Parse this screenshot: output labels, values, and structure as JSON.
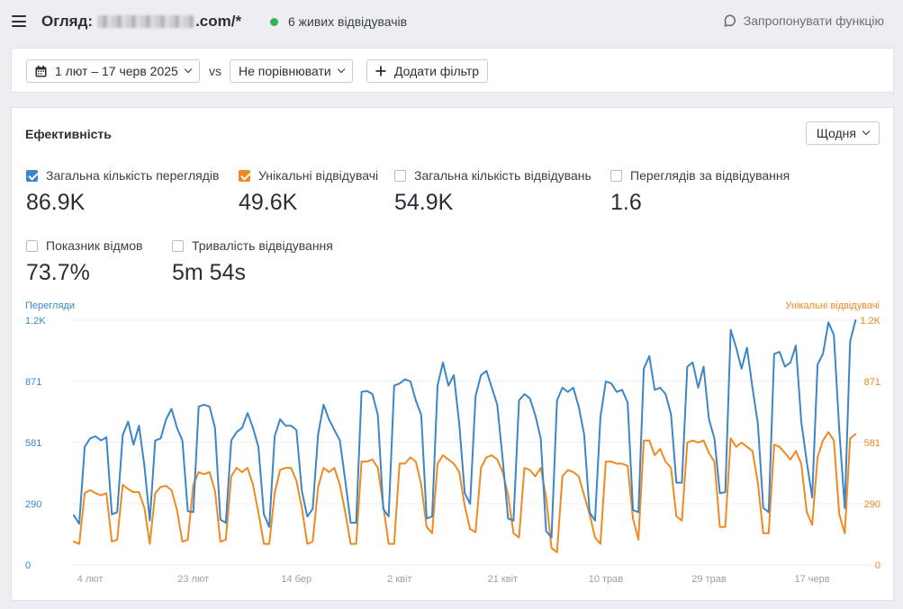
{
  "header": {
    "title_prefix": "Огляд:",
    "title_suffix": ".com/*",
    "live_visitors": "6 живих відвідувачів",
    "suggest_feature": "Запропонувати функцію"
  },
  "filters": {
    "date_range": "1 лют – 17 черв 2025",
    "vs": "vs",
    "compare": "Не порівнювати",
    "add_filter": "Додати фільтр"
  },
  "panel": {
    "title": "Ефективність",
    "interval": "Щодня"
  },
  "metrics": [
    {
      "label": "Загальна кількість переглядів",
      "value": "86.9K",
      "checked": true,
      "color": "#3d86c6"
    },
    {
      "label": "Унікальні відвідувачі",
      "value": "49.6K",
      "checked": true,
      "color": "#ef8a22"
    },
    {
      "label": "Загальна кількість відвідувань",
      "value": "54.9K",
      "checked": false
    },
    {
      "label": "Переглядів за відвідування",
      "value": "1.6",
      "checked": false
    },
    {
      "label": "Показник відмов",
      "value": "73.7%",
      "checked": false
    },
    {
      "label": "Тривалість відвідування",
      "value": "5m 54s",
      "checked": false
    }
  ],
  "chart_data": {
    "type": "line",
    "left_axis_title": "Перегляди",
    "right_axis_title": "Унікальні відвідувачі",
    "ylim": [
      0,
      1160
    ],
    "y_ticks": [
      0,
      290,
      581,
      871,
      1160
    ],
    "y_tick_labels": [
      "0",
      "290",
      "581",
      "871",
      "1.2K"
    ],
    "x_start": "2025-02-01",
    "x_labels": [
      {
        "label": "4 лют",
        "day": 3
      },
      {
        "label": "23 лют",
        "day": 22
      },
      {
        "label": "14 бер",
        "day": 41
      },
      {
        "label": "2 квіт",
        "day": 60
      },
      {
        "label": "21 квіт",
        "day": 79
      },
      {
        "label": "10 трав",
        "day": 98
      },
      {
        "label": "29 трав",
        "day": 117
      },
      {
        "label": "17 черв",
        "day": 136
      }
    ],
    "grid": true,
    "series": [
      {
        "name": "Перегляди",
        "color": "#3d86c6",
        "values": [
          235,
          195,
          560,
          600,
          610,
          590,
          605,
          240,
          250,
          615,
          680,
          570,
          660,
          470,
          210,
          590,
          600,
          690,
          740,
          650,
          590,
          255,
          250,
          750,
          760,
          750,
          650,
          215,
          200,
          590,
          630,
          650,
          720,
          650,
          560,
          240,
          180,
          610,
          690,
          660,
          660,
          640,
          350,
          230,
          265,
          620,
          760,
          690,
          640,
          590,
          400,
          200,
          200,
          820,
          825,
          810,
          710,
          265,
          230,
          850,
          860,
          880,
          870,
          780,
          710,
          220,
          230,
          850,
          960,
          850,
          900,
          670,
          340,
          290,
          800,
          900,
          920,
          840,
          760,
          500,
          220,
          210,
          780,
          810,
          790,
          710,
          600,
          160,
          130,
          780,
          840,
          820,
          840,
          750,
          620,
          250,
          210,
          700,
          870,
          860,
          820,
          830,
          770,
          260,
          250,
          930,
          990,
          830,
          840,
          810,
          715,
          390,
          390,
          940,
          960,
          840,
          940,
          690,
          600,
          340,
          345,
          1115,
          1030,
          930,
          1030,
          840,
          670,
          270,
          250,
          1000,
          1010,
          940,
          960,
          1040,
          680,
          490,
          320,
          950,
          1000,
          1150,
          1090,
          640,
          270,
          1060,
          1160
        ]
      },
      {
        "name": "Унікальні відвідувачі",
        "color": "#ef8a22",
        "values": [
          110,
          100,
          340,
          355,
          340,
          330,
          340,
          110,
          120,
          380,
          360,
          345,
          345,
          270,
          100,
          340,
          370,
          375,
          355,
          260,
          110,
          120,
          380,
          440,
          430,
          440,
          350,
          110,
          120,
          420,
          460,
          440,
          460,
          380,
          250,
          100,
          100,
          340,
          450,
          460,
          460,
          400,
          270,
          100,
          110,
          370,
          460,
          440,
          460,
          380,
          250,
          100,
          100,
          490,
          490,
          500,
          460,
          280,
          100,
          100,
          480,
          480,
          510,
          490,
          380,
          180,
          150,
          480,
          520,
          500,
          480,
          440,
          280,
          170,
          155,
          460,
          510,
          520,
          500,
          440,
          330,
          150,
          130,
          460,
          450,
          420,
          460,
          320,
          80,
          60,
          420,
          450,
          440,
          420,
          330,
          240,
          130,
          100,
          490,
          490,
          480,
          480,
          470,
          220,
          120,
          590,
          590,
          520,
          550,
          490,
          460,
          230,
          210,
          580,
          590,
          580,
          590,
          530,
          490,
          180,
          180,
          600,
          560,
          580,
          560,
          540,
          390,
          150,
          150,
          570,
          560,
          530,
          500,
          540,
          480,
          250,
          190,
          510,
          590,
          630,
          590,
          240,
          150,
          600,
          620
        ]
      }
    ]
  }
}
